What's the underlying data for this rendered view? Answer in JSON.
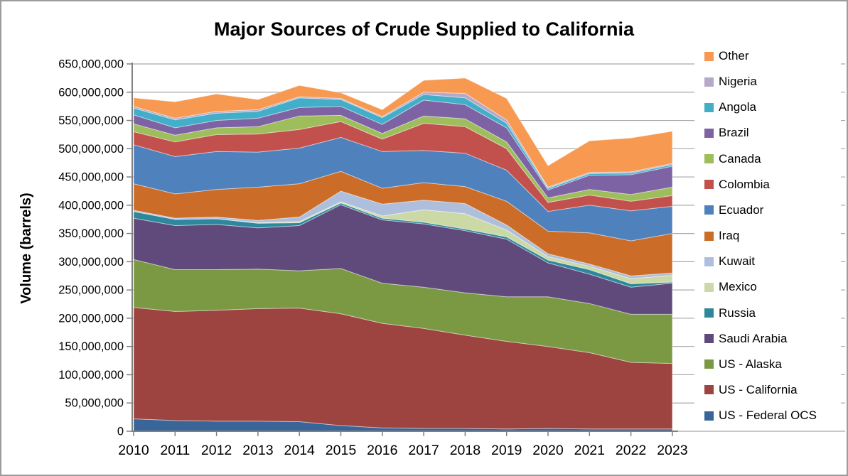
{
  "title": "Major Sources of Crude Supplied to California",
  "y_axis": {
    "title": "Volume (barrels)",
    "min": 0,
    "max": 650000000,
    "tick_step": 50000000
  },
  "x_axis": {
    "categories": [
      "2010",
      "2011",
      "2012",
      "2013",
      "2014",
      "2015",
      "2016",
      "2017",
      "2018",
      "2019",
      "2020",
      "2021",
      "2022",
      "2023"
    ]
  },
  "chart_data": {
    "type": "area",
    "stacked": true,
    "title": "Major Sources of Crude Supplied to California",
    "xlabel": "",
    "ylabel": "Volume (barrels)",
    "ylim": [
      0,
      650000000
    ],
    "grid": true,
    "legend_position": "right",
    "x": [
      "2010",
      "2011",
      "2012",
      "2013",
      "2014",
      "2015",
      "2016",
      "2017",
      "2018",
      "2019",
      "2020",
      "2021",
      "2022",
      "2023"
    ],
    "series_bottom_to_top": [
      {
        "name": "US - Federal OCS",
        "color": "#3A6598",
        "values": [
          22000000,
          19000000,
          18000000,
          18000000,
          17000000,
          10000000,
          6000000,
          5000000,
          5000000,
          4000000,
          5000000,
          4000000,
          4000000,
          4000000
        ]
      },
      {
        "name": "US - California",
        "color": "#9D4340",
        "values": [
          197000000,
          193000000,
          196000000,
          199000000,
          201000000,
          198000000,
          185000000,
          177000000,
          165000000,
          155000000,
          145000000,
          135000000,
          118000000,
          116000000
        ]
      },
      {
        "name": "US - Alaska",
        "color": "#7B9943",
        "values": [
          85000000,
          74000000,
          72000000,
          70000000,
          66000000,
          80000000,
          71000000,
          73000000,
          75000000,
          79000000,
          88000000,
          87000000,
          85000000,
          87000000
        ]
      },
      {
        "name": "Saudi Arabia",
        "color": "#604A7B",
        "values": [
          73000000,
          78000000,
          80000000,
          73000000,
          80000000,
          113000000,
          112000000,
          112000000,
          110000000,
          102000000,
          60000000,
          52000000,
          48000000,
          55000000
        ]
      },
      {
        "name": "Russia",
        "color": "#2E879C",
        "values": [
          12000000,
          11000000,
          10000000,
          8000000,
          5000000,
          3000000,
          3000000,
          3000000,
          3000000,
          4000000,
          5000000,
          8000000,
          6000000,
          2000000
        ]
      },
      {
        "name": "Mexico",
        "color": "#CBD9A6",
        "values": [
          0,
          0,
          0,
          1000000,
          2000000,
          2000000,
          4000000,
          22000000,
          27000000,
          12000000,
          6000000,
          6000000,
          9000000,
          12000000
        ]
      },
      {
        "name": "Kuwait",
        "color": "#AEBFDE",
        "values": [
          2000000,
          2000000,
          3000000,
          4000000,
          8000000,
          19000000,
          21000000,
          17000000,
          18000000,
          9000000,
          5000000,
          4000000,
          5000000,
          4000000
        ]
      },
      {
        "name": "Iraq",
        "color": "#CB6D29",
        "values": [
          47000000,
          43000000,
          49000000,
          59000000,
          59000000,
          35000000,
          28000000,
          31000000,
          30000000,
          42000000,
          40000000,
          55000000,
          62000000,
          70000000
        ]
      },
      {
        "name": "Ecuador",
        "color": "#4F81BD",
        "values": [
          69000000,
          66000000,
          67000000,
          62000000,
          63000000,
          60000000,
          65000000,
          57000000,
          59000000,
          55000000,
          35000000,
          49000000,
          53000000,
          48000000
        ]
      },
      {
        "name": "Colombia",
        "color": "#C2514E",
        "values": [
          23000000,
          26000000,
          30000000,
          32000000,
          33000000,
          28000000,
          22000000,
          48000000,
          47000000,
          38000000,
          16000000,
          18000000,
          17000000,
          19000000
        ]
      },
      {
        "name": "Canada",
        "color": "#9EBD5B",
        "values": [
          14000000,
          12000000,
          12000000,
          13000000,
          24000000,
          11000000,
          10000000,
          13000000,
          14000000,
          12000000,
          8000000,
          10000000,
          12000000,
          15000000
        ]
      },
      {
        "name": "Brazil",
        "color": "#7D63A4",
        "values": [
          16000000,
          13000000,
          13000000,
          15000000,
          15000000,
          16000000,
          16000000,
          28000000,
          25000000,
          25000000,
          14000000,
          25000000,
          35000000,
          37000000
        ]
      },
      {
        "name": "Angola",
        "color": "#43AEC8",
        "values": [
          12000000,
          14000000,
          13000000,
          12000000,
          17000000,
          12000000,
          12000000,
          10000000,
          12000000,
          8000000,
          3000000,
          3000000,
          3000000,
          3000000
        ]
      },
      {
        "name": "Nigeria",
        "color": "#B5A8C8",
        "values": [
          3000000,
          3000000,
          3000000,
          3000000,
          2000000,
          2000000,
          2000000,
          4000000,
          8000000,
          6000000,
          2000000,
          2000000,
          2000000,
          2000000
        ]
      },
      {
        "name": "Other",
        "color": "#F79950",
        "values": [
          15000000,
          29000000,
          31000000,
          18000000,
          20000000,
          10000000,
          12000000,
          21000000,
          27000000,
          38000000,
          38000000,
          56000000,
          60000000,
          57000000
        ]
      }
    ],
    "legend_top_to_bottom": [
      "Other",
      "Nigeria",
      "Angola",
      "Brazil",
      "Canada",
      "Colombia",
      "Ecuador",
      "Iraq",
      "Kuwait",
      "Mexico",
      "Russia",
      "Saudi Arabia",
      "US - Alaska",
      "US - California",
      "US - Federal OCS"
    ]
  },
  "colors": {
    "gridline": "#A8A8A8",
    "axis_line": "#808080",
    "text": "#000000",
    "frame_border": "#9C9C9C",
    "background": "#FFFFFF"
  }
}
